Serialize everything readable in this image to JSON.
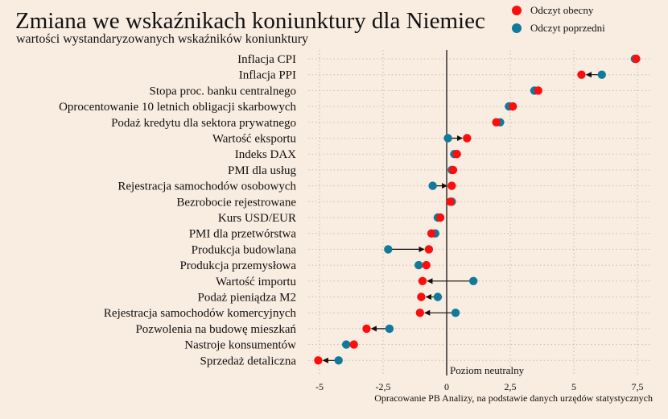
{
  "title": "Zmiana we wskaźnikach koniunktury dla Niemiec",
  "subtitle": "wartości wystandaryzowanych wskaźników koniunktury",
  "source": "Opracowanie PB Analizy, na podstawie danych urzędów statystycznych",
  "neutral_label": "Poziom neutralny",
  "colors": {
    "current": "#ff0d0d",
    "previous": "#0f7a99",
    "arrow": "#111111",
    "grid": "#c9bcb0",
    "background": "#f9ece0"
  },
  "chart_data": {
    "type": "scatter",
    "title": "Zmiana we wskaźnikach koniunktury dla Niemiec",
    "subtitle": "wartości wystandaryzowanych wskaźników koniunktury",
    "xlabel": "",
    "ylabel": "",
    "xlim": [
      -5.5,
      8.2
    ],
    "xticks": [
      -5,
      -2.5,
      0,
      2.5,
      5,
      7.5
    ],
    "xtick_labels": [
      "-5",
      "-2,5",
      "0",
      "2,5",
      "5",
      "7,5"
    ],
    "grid": true,
    "legend_position": "top-right",
    "series": [
      {
        "name": "Odczyt obecny",
        "color": "#ff0d0d"
      },
      {
        "name": "Odczyt poprzedni",
        "color": "#0f7a99"
      }
    ],
    "categories": [
      "Inflacja CPI",
      "Inflacja PPI",
      "Stopa proc. banku centralnego",
      "Oprocentowanie 10 letnich obligacji skarbowych",
      "Podaż kredytu dla sektora prywatnego",
      "Wartość eksportu",
      "Indeks DAX",
      "PMI dla usług",
      "Rejestracja samochodów osobowych",
      "Bezrobocie rejestrowane",
      "Kurs USD/EUR",
      "PMI dla przetwórstwa",
      "Produkcja budowlana",
      "Produkcja przemysłowa",
      "Wartość importu",
      "Podaż pieniądza M2",
      "Rejestracja samochodów komercyjnych",
      "Pozwolenia na budowę mieszkań",
      "Nastroje konsumentów",
      "Sprzedaż detaliczna"
    ],
    "current": [
      7.45,
      5.3,
      3.6,
      2.6,
      1.95,
      0.8,
      0.4,
      0.25,
      0.2,
      0.15,
      -0.25,
      -0.6,
      -0.7,
      -0.8,
      -0.95,
      -1.0,
      -1.05,
      -3.15,
      -3.65,
      -5.05
    ],
    "previous": [
      7.4,
      6.1,
      3.45,
      2.45,
      2.1,
      0.05,
      0.3,
      0.2,
      -0.55,
      0.2,
      -0.35,
      -0.45,
      -2.3,
      -1.1,
      1.05,
      -0.35,
      0.35,
      -2.25,
      -3.95,
      -4.25
    ]
  }
}
